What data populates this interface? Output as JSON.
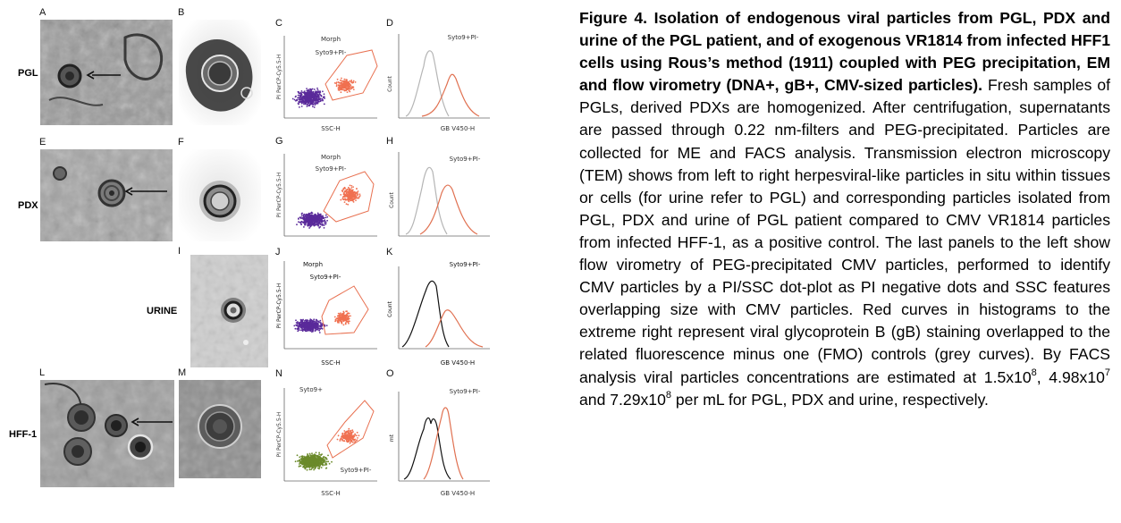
{
  "figure": {
    "panel_letters": {
      "A": "A",
      "B": "B",
      "C": "C",
      "D": "D",
      "E": "E",
      "F": "F",
      "G": "G",
      "H": "H",
      "I": "I",
      "J": "J",
      "K": "K",
      "L": "L",
      "M": "M",
      "N": "N",
      "O": "O"
    },
    "row_labels": [
      "PGL",
      "PDX",
      "URINE",
      "HFF-1"
    ],
    "scatter_panels": [
      {
        "id": "C",
        "title": "Morph",
        "gate_label": "Syto9+PI-",
        "xlabel": "SSC-H",
        "ylabel": "PI PerCP-Cy5.5-H",
        "dots_color": "#5a2a9a",
        "gate_color": "#f07050"
      },
      {
        "id": "G",
        "title": "Morph",
        "gate_label": "Syto9+PI-",
        "xlabel": "SSC-H",
        "ylabel": "PI PerCP-Cy5.5-H",
        "dots_color": "#5a2a9a",
        "gate_color": "#f07050"
      },
      {
        "id": "J",
        "title": "Morph",
        "gate_label": "Syto9+PI-",
        "xlabel": "SSC-H",
        "ylabel": "PI PerCP-Cy5.5-H",
        "dots_color": "#5a2a9a",
        "gate_color": "#f07050"
      },
      {
        "id": "N",
        "title": "Syto9+",
        "gate_label": "Syto9+PI-",
        "xlabel": "SSC-H",
        "ylabel": "PI PerCP-Cy5.5-H",
        "dots_color": "#6b8a2a",
        "gate_color": "#f07050"
      }
    ],
    "histogram_panels": [
      {
        "id": "D",
        "title": "Syto9+PI-",
        "xlabel": "GB V450-H",
        "ylabel": "Count",
        "control_color": "#b5b5b5",
        "stain_color": "#e07050"
      },
      {
        "id": "H",
        "title": "Syto9+PI-",
        "xlabel": "GB V450-H",
        "ylabel": "Count",
        "control_color": "#b5b5b5",
        "stain_color": "#e07050"
      },
      {
        "id": "K",
        "title": "Syto9+PI-",
        "xlabel": "GB V450-H",
        "ylabel": "Count",
        "control_color": "#111111",
        "stain_color": "#e07050"
      },
      {
        "id": "O",
        "title": "Syto9+PI-",
        "xlabel": "GB V450-H",
        "ylabel": "mt",
        "control_color": "#111111",
        "stain_color": "#e07050"
      }
    ]
  },
  "caption": {
    "bold": "Figure 4. Isolation of endogenous viral particles from PGL, PDX and urine of the PGL patient, and of exogenous VR1814 from infected HFF1 cells using Rous’s method (1911) coupled with PEG precipitation, EM and flow virometry (DNA+, gB+, CMV-sized particles).",
    "body": "Fresh samples of PGLs, derived PDXs are homogenized. After centrifugation, supernatants are passed through 0.22 nm-filters and PEG-precipitated. Particles are collected for ME and FACS analysis. Transmission electron microscopy (TEM) shows from left to right herpesviral-like particles in situ within tissues or cells (for urine refer to PGL) and corresponding particles isolated from PGL, PDX and urine of PGL patient compared to CMV VR1814 particles from infected HFF-1, as a positive control. The last panels to the left show flow virometry of PEG-precipitated CMV particles, performed to identify CMV particles by a PI/SSC dot-plot as PI negative dots and SSC features overlapping size with CMV particles. Red curves in histograms to the extreme right represent viral glycoprotein B (gB) staining overlapped to the related fluorescence minus one (FMO) controls (grey curves).",
    "conc_prefix": "By FACS analysis viral particles concentrations are estimated at",
    "c1_base": "1.5x10",
    "c1_exp": "8",
    "c2_base": "4.98x10",
    "c2_exp": "7",
    "c3_base": "7.29x10",
    "c3_exp": "8",
    "conc_suffix": "per mL for PGL, PDX and urine, respectively."
  }
}
